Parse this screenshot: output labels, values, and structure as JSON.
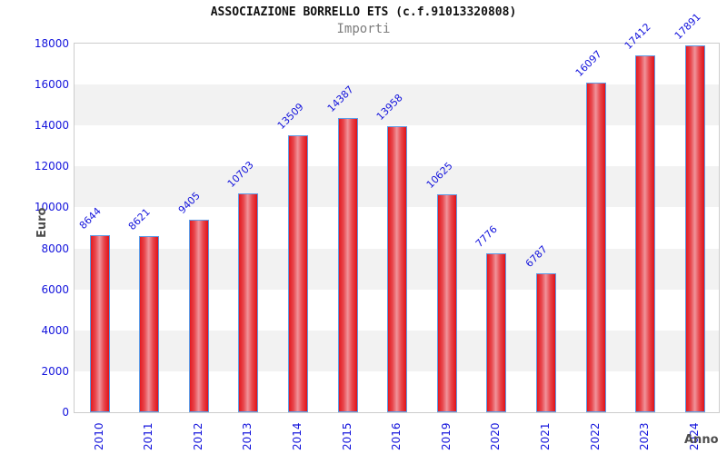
{
  "header": {
    "title": "ASSOCIAZIONE BORRELLO ETS (c.f.91013320808)",
    "subtitle": "Importi"
  },
  "chart_data": {
    "type": "bar",
    "title": "ASSOCIAZIONE BORRELLO ETS (c.f.91013320808)",
    "subtitle": "Importi",
    "xlabel": "Anno",
    "ylabel": "Euro",
    "categories": [
      "2010",
      "2011",
      "2012",
      "2013",
      "2014",
      "2015",
      "2016",
      "2019",
      "2020",
      "2021",
      "2022",
      "2023",
      "2024"
    ],
    "values": [
      8644,
      8621,
      9405,
      10703,
      13509,
      14387,
      13958,
      10625,
      7776,
      6787,
      16097,
      17412,
      17891
    ],
    "ylim": [
      0,
      18000
    ],
    "ytick_step": 2000,
    "ytick_labels": [
      "0",
      "2000",
      "4000",
      "6000",
      "8000",
      "10000",
      "12000",
      "14000",
      "16000",
      "18000"
    ],
    "grid": "alternating-horizontal-bands",
    "legend": "none",
    "colors": {
      "label_blue": "#1414dc",
      "bar_border": "#5e9ce6",
      "bar_red_edge": "#e41a20",
      "bar_red_highlight": "#f0939a",
      "band_gray": "#f2f2f2",
      "plot_border": "#cccccc",
      "title_color": "#111111",
      "subtitle_color": "#7d7d7d",
      "axis_title_color": "#4d4d4d",
      "background": "#ffffff"
    }
  }
}
